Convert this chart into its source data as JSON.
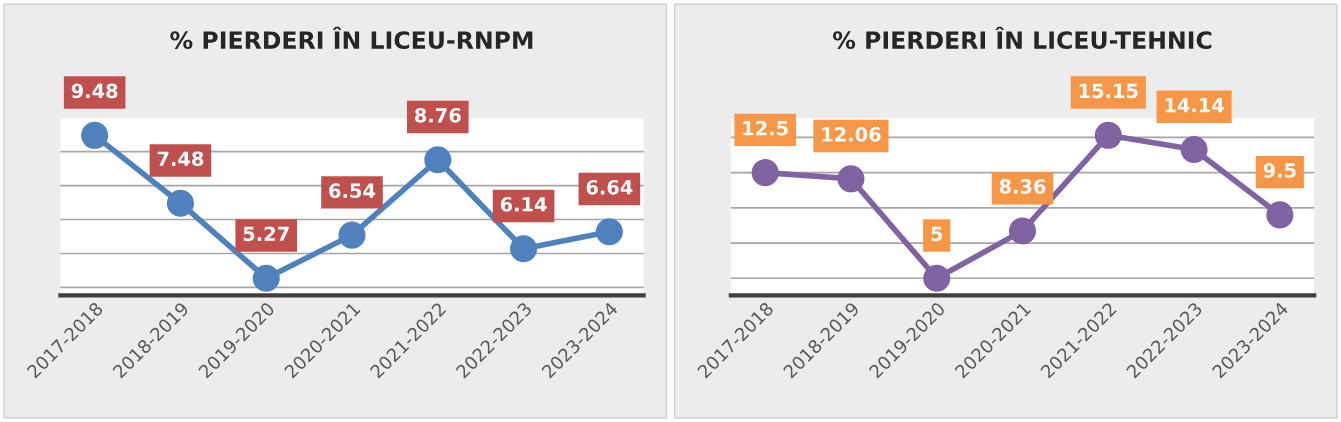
{
  "chart_data": [
    {
      "type": "line",
      "title": "% PIERDERI ÎN LICEU-RNPM",
      "categories": [
        "2017-2018",
        "2018-2019",
        "2019-2020",
        "2020-2021",
        "2021-2022",
        "2022-2023",
        "2023-2024"
      ],
      "series": [
        {
          "color": "#4f81bd",
          "values": [
            9.48,
            7.48,
            5.27,
            6.54,
            8.76,
            6.14,
            6.64
          ]
        }
      ],
      "tick_labels": "x",
      "grid": "y",
      "marker": "circle",
      "line_style": "solid",
      "data_labels": true,
      "legend": false
    },
    {
      "type": "line",
      "title": "% PIERDERI ÎN LICEU-TEHNIC",
      "categories": [
        "2017-2018",
        "2018-2019",
        "2019-2020",
        "2020-2021",
        "2021-2022",
        "2022-2023",
        "2023-2024"
      ],
      "series": [
        {
          "color": "#8064a2",
          "values": [
            12.5,
            12.06,
            5,
            8.36,
            15.15,
            14.14,
            9.5
          ]
        }
      ],
      "tick_labels": "x",
      "grid": "y",
      "marker": "circle",
      "line_style": "solid",
      "data_labels": true,
      "legend": false
    }
  ]
}
